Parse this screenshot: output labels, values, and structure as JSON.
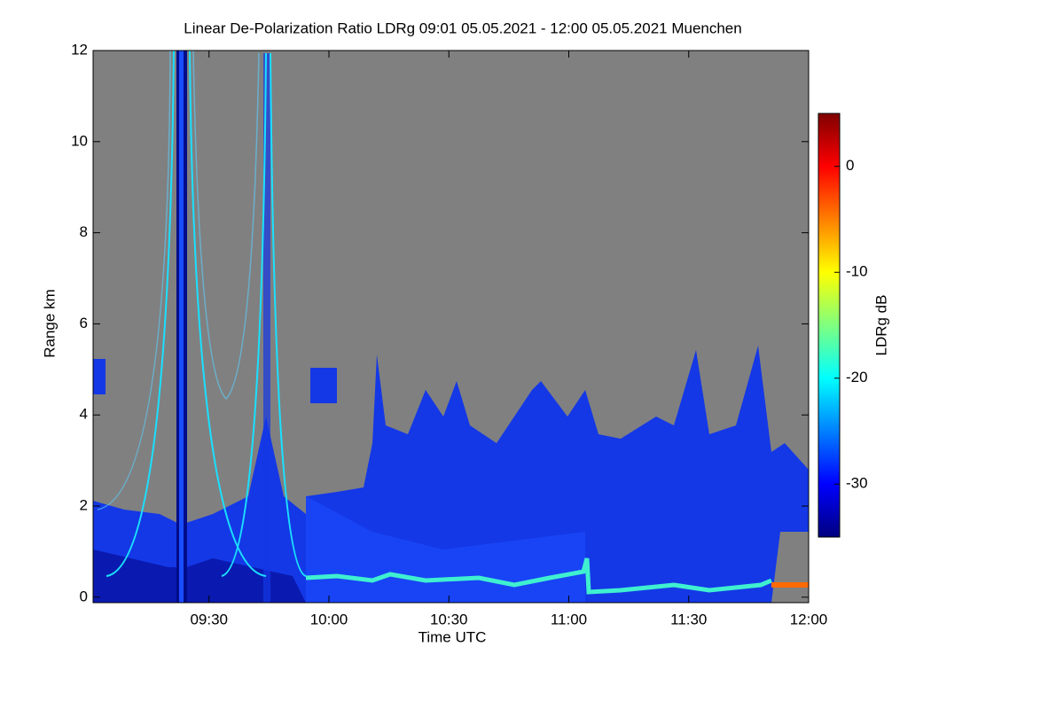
{
  "chart_data": {
    "type": "heatmap",
    "title": "Linear De-Polarization Ratio LDRg   09:01 05.05.2021 - 12:00 05.05.2021 Muenchen",
    "xlabel": "Time UTC",
    "ylabel": "Range km",
    "xlim": [
      541,
      720
    ],
    "xticks": [
      {
        "value": 570,
        "label": "09:30"
      },
      {
        "value": 600,
        "label": "10:00"
      },
      {
        "value": 630,
        "label": "10:30"
      },
      {
        "value": 660,
        "label": "11:00"
      },
      {
        "value": 690,
        "label": "11:30"
      },
      {
        "value": 720,
        "label": "12:00"
      }
    ],
    "ylim": [
      -0.12,
      12
    ],
    "yticks": [
      0,
      2,
      4,
      6,
      8,
      10,
      12
    ],
    "colorbar": {
      "label": "LDRg dB",
      "lim": [
        -35,
        5
      ],
      "ticks": [
        -30,
        -20,
        -10,
        0
      ],
      "colormap": "jet"
    }
  }
}
